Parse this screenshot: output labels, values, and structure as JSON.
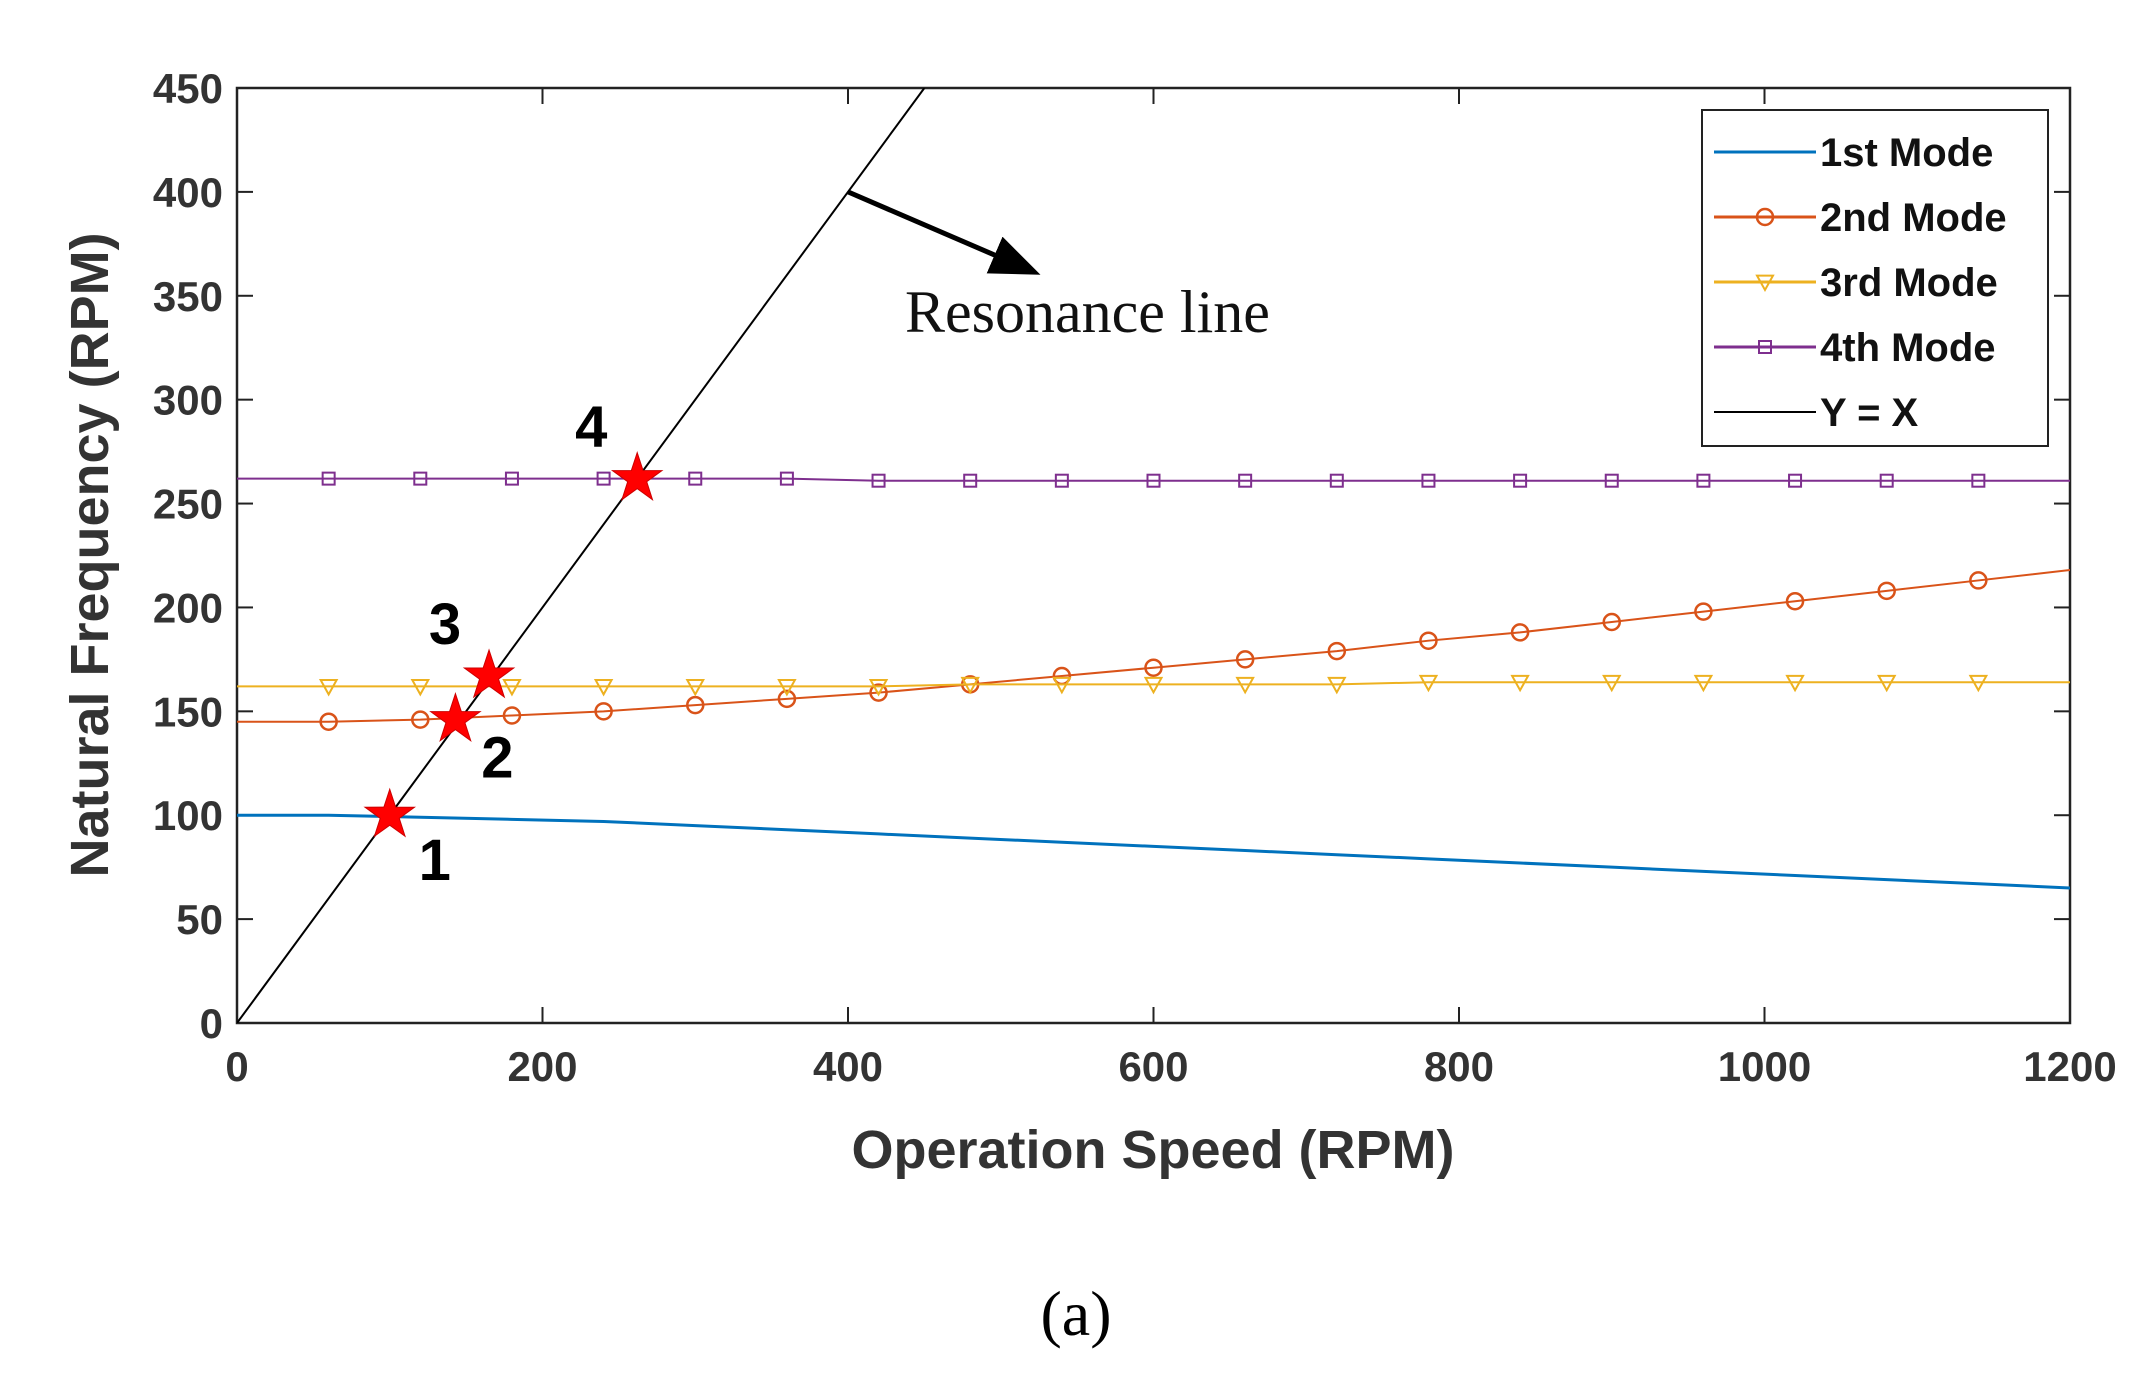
{
  "chart_data": {
    "type": "line",
    "xlabel": "Operation Speed (RPM)",
    "ylabel": "Natural Frequency (RPM)",
    "xlim": [
      0,
      1200
    ],
    "ylim": [
      0,
      450
    ],
    "xticks": [
      0,
      200,
      400,
      600,
      800,
      1000,
      1200
    ],
    "yticks": [
      0,
      50,
      100,
      150,
      200,
      250,
      300,
      350,
      400,
      450
    ],
    "grid": false,
    "legend_position": "top-right",
    "series": [
      {
        "name": "1st Mode",
        "color": "#0072BD",
        "marker": "none",
        "x": [
          0,
          60,
          120,
          180,
          240,
          300,
          360,
          420,
          480,
          540,
          600,
          660,
          720,
          780,
          840,
          900,
          960,
          1020,
          1080,
          1140,
          1200
        ],
        "y": [
          100,
          100,
          99,
          98,
          97,
          95,
          93,
          91,
          89,
          87,
          85,
          83,
          81,
          79,
          77,
          75,
          73,
          71,
          69,
          67,
          65
        ]
      },
      {
        "name": "2nd Mode",
        "color": "#D95319",
        "marker": "circle",
        "x": [
          0,
          60,
          120,
          180,
          240,
          300,
          360,
          420,
          480,
          540,
          600,
          660,
          720,
          780,
          840,
          900,
          960,
          1020,
          1080,
          1140,
          1200
        ],
        "y": [
          145,
          145,
          146,
          148,
          150,
          153,
          156,
          159,
          163,
          167,
          171,
          175,
          179,
          184,
          188,
          193,
          198,
          203,
          208,
          213,
          218
        ]
      },
      {
        "name": "3rd Mode",
        "color": "#EDB120",
        "marker": "triangle-down",
        "x": [
          0,
          60,
          120,
          180,
          240,
          300,
          360,
          420,
          480,
          540,
          600,
          660,
          720,
          780,
          840,
          900,
          960,
          1020,
          1080,
          1140,
          1200
        ],
        "y": [
          162,
          162,
          162,
          162,
          162,
          162,
          162,
          162,
          163,
          163,
          163,
          163,
          163,
          164,
          164,
          164,
          164,
          164,
          164,
          164,
          164
        ]
      },
      {
        "name": "4th Mode",
        "color": "#7E2F8E",
        "marker": "square",
        "x": [
          0,
          60,
          120,
          180,
          240,
          300,
          360,
          420,
          480,
          540,
          600,
          660,
          720,
          780,
          840,
          900,
          960,
          1020,
          1080,
          1140,
          1200
        ],
        "y": [
          262,
          262,
          262,
          262,
          262,
          262,
          262,
          261,
          261,
          261,
          261,
          261,
          261,
          261,
          261,
          261,
          261,
          261,
          261,
          261,
          261
        ]
      },
      {
        "name": "Y = X",
        "color": "#000000",
        "marker": "none",
        "x": [
          0,
          450
        ],
        "y": [
          0,
          450
        ]
      }
    ],
    "resonance_points": [
      {
        "label": "1",
        "x": 100,
        "y": 100
      },
      {
        "label": "2",
        "x": 143,
        "y": 146
      },
      {
        "label": "3",
        "x": 165,
        "y": 167
      },
      {
        "label": "4",
        "x": 262,
        "y": 262
      }
    ],
    "annotation": {
      "text": "Resonance line",
      "arrow_from": [
        400,
        400
      ],
      "arrow_to": [
        520,
        362
      ]
    },
    "caption": "(a)"
  }
}
